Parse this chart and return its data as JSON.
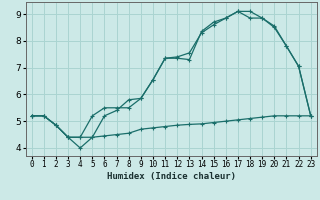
{
  "xlabel": "Humidex (Indice chaleur)",
  "bg_color": "#cce9e7",
  "grid_color": "#aad4d1",
  "line_color": "#1a6e6a",
  "xlim": [
    -0.5,
    23.5
  ],
  "ylim": [
    3.7,
    9.45
  ],
  "xticks": [
    0,
    1,
    2,
    3,
    4,
    5,
    6,
    7,
    8,
    9,
    10,
    11,
    12,
    13,
    14,
    15,
    16,
    17,
    18,
    19,
    20,
    21,
    22,
    23
  ],
  "yticks": [
    4,
    5,
    6,
    7,
    8,
    9
  ],
  "line1_x": [
    0,
    1,
    2,
    3,
    4,
    5,
    6,
    7,
    8,
    9,
    10,
    11,
    12,
    13,
    14,
    15,
    16,
    17,
    18,
    19,
    20,
    21,
    22,
    23
  ],
  "line1_y": [
    5.2,
    5.2,
    4.85,
    4.4,
    4.0,
    4.4,
    4.45,
    4.5,
    4.55,
    4.7,
    4.75,
    4.8,
    4.85,
    4.88,
    4.9,
    4.95,
    5.0,
    5.05,
    5.1,
    5.15,
    5.2,
    5.2,
    5.2,
    5.2
  ],
  "line2_x": [
    0,
    1,
    2,
    3,
    4,
    5,
    6,
    7,
    8,
    9,
    10,
    11,
    12,
    13,
    14,
    15,
    16,
    17,
    18,
    19,
    20,
    21,
    22,
    23
  ],
  "line2_y": [
    5.2,
    5.2,
    4.85,
    4.4,
    4.4,
    4.4,
    5.2,
    5.4,
    5.8,
    5.85,
    6.55,
    7.35,
    7.4,
    7.55,
    8.3,
    8.6,
    8.85,
    9.1,
    8.85,
    8.85,
    8.5,
    7.8,
    7.05,
    5.2
  ],
  "line3_x": [
    0,
    1,
    2,
    3,
    4,
    5,
    6,
    7,
    8,
    9,
    10,
    11,
    12,
    13,
    14,
    15,
    16,
    17,
    18,
    19,
    20,
    21,
    22,
    23
  ],
  "line3_y": [
    5.2,
    5.2,
    4.85,
    4.4,
    4.4,
    5.2,
    5.5,
    5.5,
    5.5,
    5.85,
    6.55,
    7.35,
    7.35,
    7.3,
    8.35,
    8.7,
    8.85,
    9.1,
    9.1,
    8.85,
    8.55,
    7.8,
    7.05,
    5.2
  ]
}
